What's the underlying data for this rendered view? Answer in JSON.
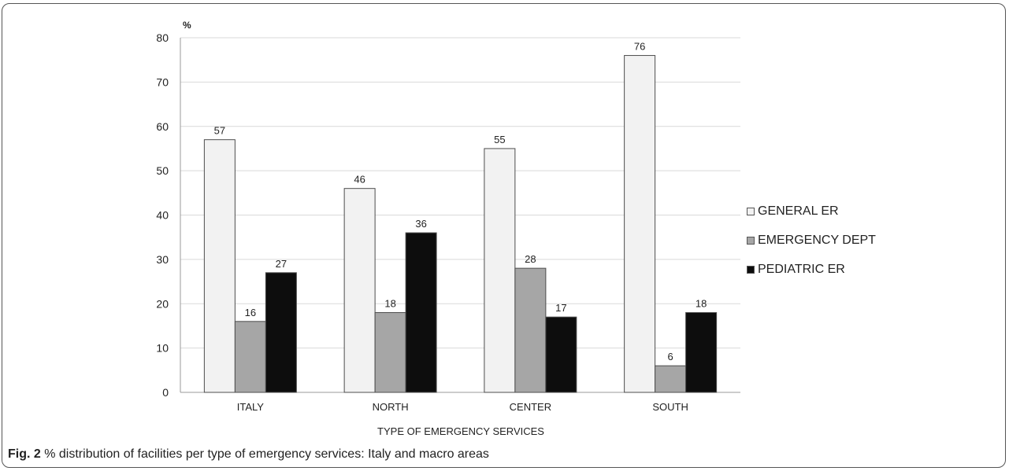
{
  "chart_data": {
    "type": "bar",
    "title": "",
    "ylabel": "%",
    "xlabel": "TYPE OF EMERGENCY SERVICES",
    "categories": [
      "ITALY",
      "NORTH",
      "CENTER",
      "SOUTH"
    ],
    "series": [
      {
        "name": "GENERAL ER",
        "color": "#f2f2f2",
        "values": [
          57,
          46,
          55,
          76
        ]
      },
      {
        "name": "EMERGENCY DEPT",
        "color": "#a6a6a6",
        "values": [
          16,
          18,
          28,
          6
        ]
      },
      {
        "name": "PEDIATRIC ER",
        "color": "#0d0d0d",
        "values": [
          27,
          36,
          17,
          18
        ]
      }
    ],
    "ylim": [
      0,
      80
    ],
    "yticks": [
      "0",
      "10",
      "20",
      "30",
      "40",
      "50",
      "60",
      "70",
      "80"
    ],
    "grid": true,
    "legend_position": "right",
    "data_labels": true
  },
  "caption": {
    "label": "Fig. 2",
    "text": "% distribution of facilities per type of emergency services: Italy and macro areas"
  }
}
